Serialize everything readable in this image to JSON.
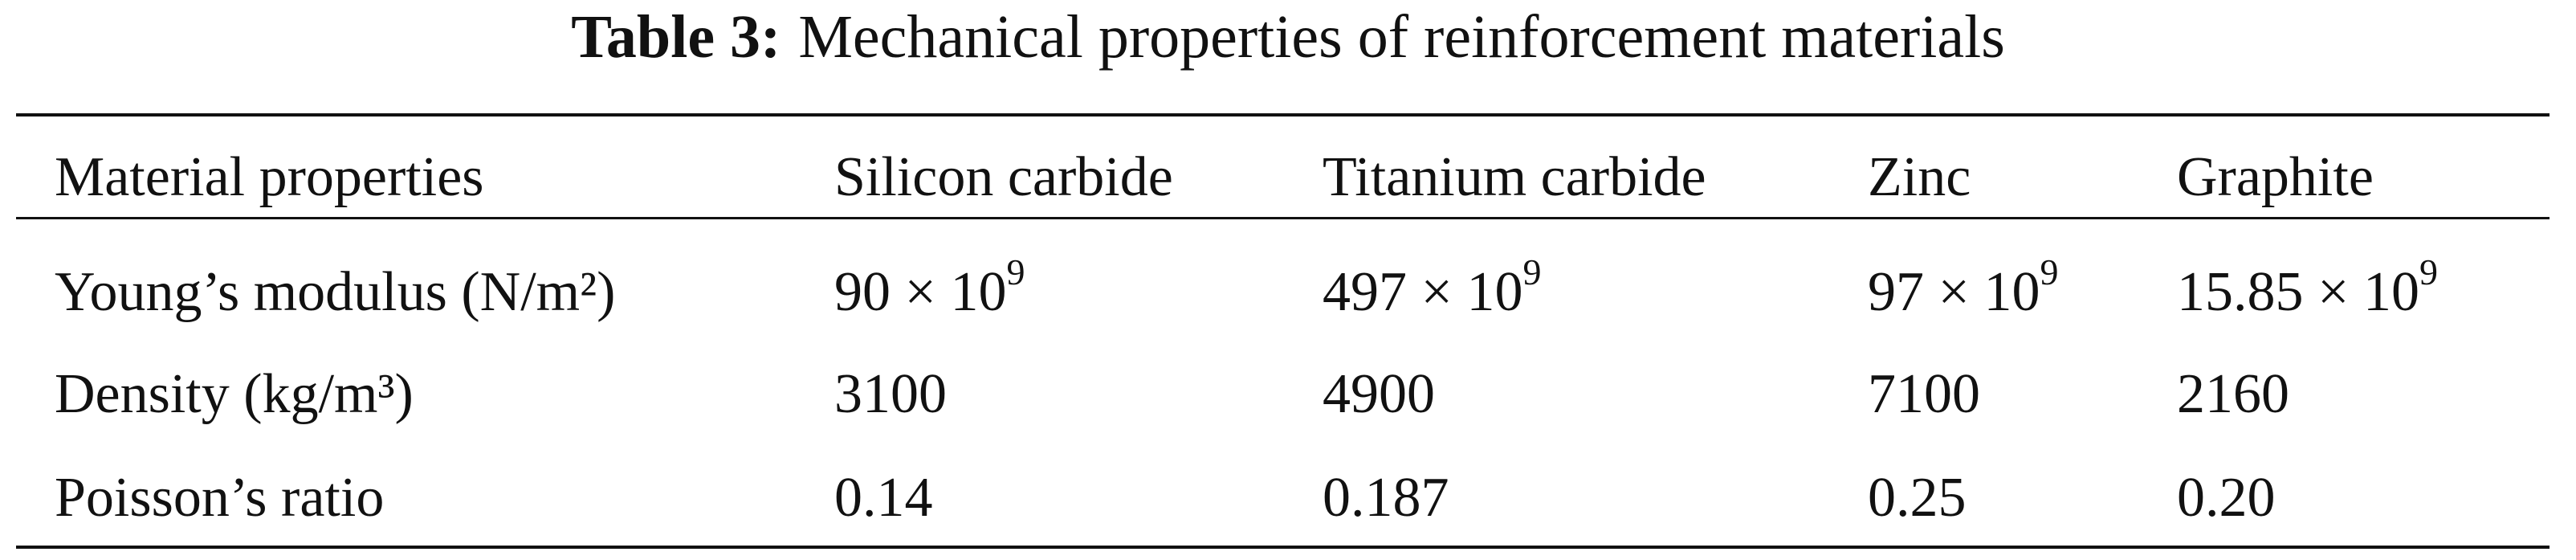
{
  "title": {
    "label": "Table 3:",
    "text": "Mechanical properties of reinforcement materials"
  },
  "table": {
    "header": [
      "Material properties",
      "Silicon carbide",
      "Titanium carbide",
      "Zinc",
      "Graphite"
    ],
    "rows": [
      [
        "Young’s modulus (N/m²)",
        {
          "text": "90 × 10",
          "sup": "9"
        },
        {
          "text": "497 × 10",
          "sup": "9"
        },
        {
          "text": "97 × 10",
          "sup": "9"
        },
        {
          "text": "15.85 × 10",
          "sup": "9"
        }
      ],
      [
        "Density (kg/m³)",
        "3100",
        "4900",
        "7100",
        "2160"
      ],
      [
        "Poisson’s ratio",
        "0.14",
        "0.187",
        "0.25",
        "0.20"
      ]
    ]
  }
}
